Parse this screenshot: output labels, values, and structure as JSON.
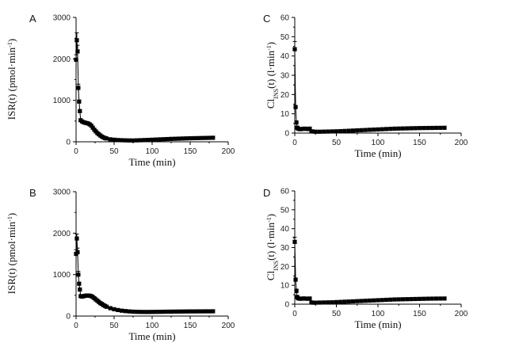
{
  "chart_data": [
    {
      "panel": "A",
      "type": "scatter",
      "xlabel": "Time (min)",
      "ylabel_parts": [
        "ISR(t) (pmol·min",
        "-1",
        ")"
      ],
      "xlim": [
        0,
        200
      ],
      "ylim": [
        0,
        3000
      ],
      "xticks": [
        "0",
        "50",
        "100",
        "150",
        "200"
      ],
      "yticks": [
        "0",
        "1000",
        "2000",
        "3000"
      ],
      "points": [
        [
          0,
          1980
        ],
        [
          1,
          2450
        ],
        [
          2,
          2180
        ],
        [
          3,
          1300
        ],
        [
          4,
          970
        ],
        [
          5,
          740
        ],
        [
          6,
          520
        ],
        [
          8,
          490
        ],
        [
          10,
          470
        ],
        [
          12,
          460
        ],
        [
          14,
          450
        ],
        [
          16,
          440
        ],
        [
          18,
          420
        ],
        [
          20,
          390
        ],
        [
          22,
          340
        ],
        [
          24,
          290
        ],
        [
          26,
          250
        ],
        [
          28,
          210
        ],
        [
          30,
          180
        ],
        [
          32,
          150
        ],
        [
          34,
          125
        ],
        [
          36,
          105
        ],
        [
          38,
          90
        ],
        [
          40,
          80
        ],
        [
          45,
          60
        ],
        [
          50,
          50
        ],
        [
          55,
          42
        ],
        [
          60,
          38
        ],
        [
          65,
          35
        ],
        [
          70,
          33
        ],
        [
          75,
          32
        ],
        [
          80,
          35
        ],
        [
          85,
          38
        ],
        [
          90,
          42
        ],
        [
          95,
          46
        ],
        [
          100,
          50
        ],
        [
          105,
          54
        ],
        [
          110,
          58
        ],
        [
          115,
          62
        ],
        [
          120,
          66
        ],
        [
          125,
          70
        ],
        [
          130,
          73
        ],
        [
          135,
          76
        ],
        [
          140,
          79
        ],
        [
          145,
          82
        ],
        [
          150,
          85
        ],
        [
          155,
          87
        ],
        [
          160,
          89
        ],
        [
          165,
          91
        ],
        [
          170,
          93
        ],
        [
          175,
          95
        ],
        [
          180,
          97
        ]
      ],
      "error_bars": [
        [
          0,
          1980,
          120
        ],
        [
          1,
          2450,
          180
        ],
        [
          2,
          2180,
          150
        ],
        [
          3,
          1300,
          90
        ]
      ]
    },
    {
      "panel": "B",
      "type": "scatter",
      "xlabel": "Time (min)",
      "ylabel_parts": [
        "ISR(t) (pmol·min",
        "-1",
        ")"
      ],
      "xlim": [
        0,
        200
      ],
      "ylim": [
        0,
        3000
      ],
      "xticks": [
        "0",
        "50",
        "100",
        "150",
        "200"
      ],
      "yticks": [
        "0",
        "1000",
        "2000",
        "3000"
      ],
      "points": [
        [
          0,
          1500
        ],
        [
          1,
          1870
        ],
        [
          2,
          1540
        ],
        [
          3,
          1000
        ],
        [
          4,
          780
        ],
        [
          5,
          640
        ],
        [
          6,
          480
        ],
        [
          8,
          470
        ],
        [
          10,
          480
        ],
        [
          12,
          490
        ],
        [
          14,
          495
        ],
        [
          16,
          495
        ],
        [
          18,
          490
        ],
        [
          20,
          480
        ],
        [
          22,
          460
        ],
        [
          24,
          430
        ],
        [
          26,
          400
        ],
        [
          28,
          370
        ],
        [
          30,
          340
        ],
        [
          32,
          310
        ],
        [
          34,
          290
        ],
        [
          36,
          265
        ],
        [
          38,
          245
        ],
        [
          40,
          225
        ],
        [
          45,
          190
        ],
        [
          50,
          165
        ],
        [
          55,
          145
        ],
        [
          60,
          130
        ],
        [
          65,
          120
        ],
        [
          70,
          112
        ],
        [
          75,
          106
        ],
        [
          80,
          102
        ],
        [
          85,
          100
        ],
        [
          90,
          99
        ],
        [
          95,
          99
        ],
        [
          100,
          100
        ],
        [
          105,
          101
        ],
        [
          110,
          102
        ],
        [
          115,
          104
        ],
        [
          120,
          106
        ],
        [
          125,
          107
        ],
        [
          130,
          108
        ],
        [
          135,
          109
        ],
        [
          140,
          110
        ],
        [
          145,
          111
        ],
        [
          150,
          112
        ],
        [
          155,
          112
        ],
        [
          160,
          113
        ],
        [
          165,
          113
        ],
        [
          170,
          114
        ],
        [
          175,
          114
        ],
        [
          180,
          115
        ]
      ],
      "error_bars": [
        [
          0,
          1500,
          100
        ],
        [
          1,
          1870,
          110
        ],
        [
          2,
          1540,
          100
        ],
        [
          3,
          1000,
          80
        ]
      ]
    },
    {
      "panel": "C",
      "type": "scatter",
      "xlabel": "Time (min)",
      "ylabel_parts": [
        "Cl",
        "INS",
        "(t) (l·min",
        "-1",
        ")"
      ],
      "xlim": [
        0,
        200
      ],
      "ylim": [
        0,
        60
      ],
      "xticks": [
        "0",
        "50",
        "100",
        "150",
        "200"
      ],
      "yticks": [
        "0",
        "10",
        "20",
        "30",
        "40",
        "50",
        "60"
      ],
      "points": [
        [
          0,
          43.5
        ],
        [
          1,
          13.5
        ],
        [
          2,
          5.5
        ],
        [
          3,
          2.8
        ],
        [
          4,
          2.3
        ],
        [
          6,
          2.0
        ],
        [
          8,
          2.1
        ],
        [
          10,
          2.2
        ],
        [
          12,
          2.3
        ],
        [
          14,
          2.2
        ],
        [
          16,
          2.1
        ],
        [
          18,
          2.3
        ],
        [
          20,
          0.9
        ],
        [
          22,
          0.8
        ],
        [
          25,
          0.7
        ],
        [
          30,
          0.7
        ],
        [
          35,
          0.75
        ],
        [
          40,
          0.8
        ],
        [
          45,
          0.85
        ],
        [
          50,
          0.9
        ],
        [
          55,
          1.0
        ],
        [
          60,
          1.1
        ],
        [
          65,
          1.2
        ],
        [
          70,
          1.3
        ],
        [
          75,
          1.4
        ],
        [
          80,
          1.5
        ],
        [
          85,
          1.6
        ],
        [
          90,
          1.7
        ],
        [
          95,
          1.8
        ],
        [
          100,
          1.9
        ],
        [
          105,
          2.0
        ],
        [
          110,
          2.1
        ],
        [
          115,
          2.2
        ],
        [
          120,
          2.3
        ],
        [
          125,
          2.35
        ],
        [
          130,
          2.4
        ],
        [
          135,
          2.45
        ],
        [
          140,
          2.5
        ],
        [
          145,
          2.55
        ],
        [
          150,
          2.6
        ],
        [
          155,
          2.62
        ],
        [
          160,
          2.65
        ],
        [
          165,
          2.67
        ],
        [
          170,
          2.7
        ],
        [
          175,
          2.72
        ],
        [
          180,
          2.75
        ]
      ],
      "error_bars": [
        [
          0,
          43.5,
          4.0
        ]
      ]
    },
    {
      "panel": "D",
      "type": "scatter",
      "xlabel": "Time (min)",
      "ylabel_parts": [
        "Cl",
        "INS",
        "(t) (l·min",
        "-1",
        ")"
      ],
      "xlim": [
        0,
        200
      ],
      "ylim": [
        0,
        60
      ],
      "xticks": [
        "0",
        "50",
        "100",
        "150",
        "200"
      ],
      "yticks": [
        "0",
        "10",
        "20",
        "30",
        "40",
        "50",
        "60"
      ],
      "points": [
        [
          0,
          33
        ],
        [
          1,
          13
        ],
        [
          2,
          7
        ],
        [
          3,
          3.8
        ],
        [
          4,
          3.1
        ],
        [
          6,
          2.9
        ],
        [
          8,
          2.9
        ],
        [
          10,
          3.0
        ],
        [
          12,
          3.0
        ],
        [
          14,
          2.9
        ],
        [
          16,
          2.9
        ],
        [
          18,
          3.0
        ],
        [
          20,
          0.9
        ],
        [
          22,
          0.8
        ],
        [
          25,
          0.8
        ],
        [
          30,
          0.85
        ],
        [
          35,
          0.9
        ],
        [
          40,
          0.95
        ],
        [
          45,
          1.0
        ],
        [
          50,
          1.1
        ],
        [
          55,
          1.2
        ],
        [
          60,
          1.3
        ],
        [
          65,
          1.4
        ],
        [
          70,
          1.5
        ],
        [
          75,
          1.6
        ],
        [
          80,
          1.7
        ],
        [
          85,
          1.8
        ],
        [
          90,
          1.9
        ],
        [
          95,
          2.0
        ],
        [
          100,
          2.1
        ],
        [
          105,
          2.2
        ],
        [
          110,
          2.3
        ],
        [
          115,
          2.4
        ],
        [
          120,
          2.5
        ],
        [
          125,
          2.55
        ],
        [
          130,
          2.6
        ],
        [
          135,
          2.65
        ],
        [
          140,
          2.7
        ],
        [
          145,
          2.75
        ],
        [
          150,
          2.8
        ],
        [
          155,
          2.85
        ],
        [
          160,
          2.9
        ],
        [
          165,
          2.93
        ],
        [
          170,
          2.96
        ],
        [
          175,
          2.98
        ],
        [
          180,
          3.0
        ]
      ],
      "error_bars": [
        [
          0,
          33,
          2.5
        ],
        [
          2,
          7,
          1.0
        ]
      ]
    }
  ]
}
